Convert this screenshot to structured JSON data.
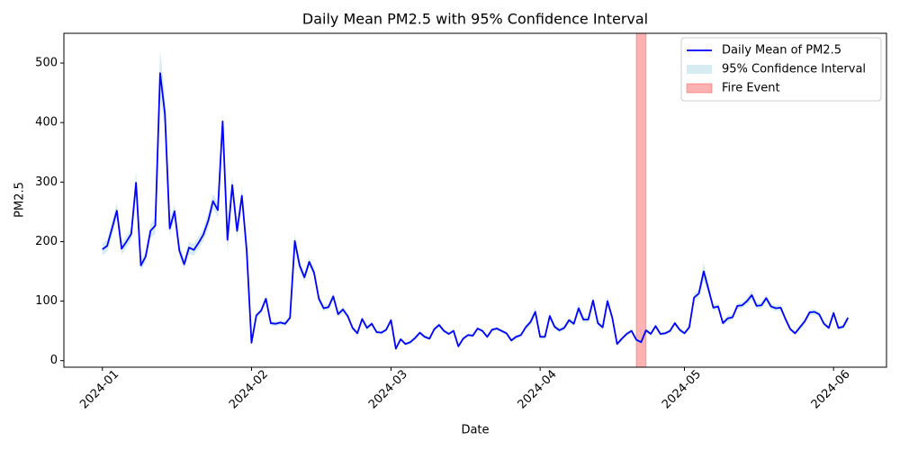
{
  "chart_data": {
    "type": "line",
    "title": "Daily Mean PM2.5 with 95% Confidence Interval",
    "xlabel": "Date",
    "ylabel": "PM2.5",
    "x": [
      "2024-01-01",
      "2024-01-02",
      "2024-01-03",
      "2024-01-04",
      "2024-01-05",
      "2024-01-06",
      "2024-01-07",
      "2024-01-08",
      "2024-01-09",
      "2024-01-10",
      "2024-01-11",
      "2024-01-12",
      "2024-01-13",
      "2024-01-14",
      "2024-01-15",
      "2024-01-16",
      "2024-01-17",
      "2024-01-18",
      "2024-01-19",
      "2024-01-20",
      "2024-01-21",
      "2024-01-22",
      "2024-01-23",
      "2024-01-24",
      "2024-01-25",
      "2024-01-26",
      "2024-01-27",
      "2024-01-28",
      "2024-01-29",
      "2024-01-30",
      "2024-01-31",
      "2024-02-01",
      "2024-02-02",
      "2024-02-03",
      "2024-02-04",
      "2024-02-05",
      "2024-02-06",
      "2024-02-07",
      "2024-02-08",
      "2024-02-09",
      "2024-02-10",
      "2024-02-11",
      "2024-02-12",
      "2024-02-13",
      "2024-02-14",
      "2024-02-15",
      "2024-02-16",
      "2024-02-17",
      "2024-02-18",
      "2024-02-19",
      "2024-02-20",
      "2024-02-21",
      "2024-02-22",
      "2024-02-23",
      "2024-02-24",
      "2024-02-25",
      "2024-02-26",
      "2024-02-27",
      "2024-02-28",
      "2024-02-29",
      "2024-03-01",
      "2024-03-02",
      "2024-03-03",
      "2024-03-04",
      "2024-03-05",
      "2024-03-06",
      "2024-03-07",
      "2024-03-08",
      "2024-03-09",
      "2024-03-10",
      "2024-03-11",
      "2024-03-12",
      "2024-03-13",
      "2024-03-14",
      "2024-03-15",
      "2024-03-16",
      "2024-03-17",
      "2024-03-18",
      "2024-03-19",
      "2024-03-20",
      "2024-03-21",
      "2024-03-22",
      "2024-03-23",
      "2024-03-24",
      "2024-03-25",
      "2024-03-26",
      "2024-03-27",
      "2024-03-28",
      "2024-03-29",
      "2024-03-30",
      "2024-03-31",
      "2024-04-01",
      "2024-04-02",
      "2024-04-03",
      "2024-04-04",
      "2024-04-05",
      "2024-04-06",
      "2024-04-07",
      "2024-04-08",
      "2024-04-09",
      "2024-04-10",
      "2024-04-11",
      "2024-04-12",
      "2024-04-13",
      "2024-04-14",
      "2024-04-15",
      "2024-04-16",
      "2024-04-17",
      "2024-04-18",
      "2024-04-19",
      "2024-04-20",
      "2024-04-21",
      "2024-04-22",
      "2024-04-23",
      "2024-04-24",
      "2024-04-25",
      "2024-04-26",
      "2024-04-27",
      "2024-04-28",
      "2024-04-29",
      "2024-04-30",
      "2024-05-01",
      "2024-05-02",
      "2024-05-03",
      "2024-05-04",
      "2024-05-05",
      "2024-05-06",
      "2024-05-07",
      "2024-05-08",
      "2024-05-09",
      "2024-05-10",
      "2024-05-11",
      "2024-05-12",
      "2024-05-13",
      "2024-05-14",
      "2024-05-15",
      "2024-05-16",
      "2024-05-17",
      "2024-05-18",
      "2024-05-19",
      "2024-05-20",
      "2024-05-21",
      "2024-05-22",
      "2024-05-23",
      "2024-05-24",
      "2024-05-25",
      "2024-05-26",
      "2024-05-27",
      "2024-05-28",
      "2024-05-29",
      "2024-05-30",
      "2024-05-31",
      "2024-06-01",
      "2024-06-02",
      "2024-06-03",
      "2024-06-04"
    ],
    "series": [
      {
        "name": "Daily Mean of PM2.5",
        "color": "#0000ff",
        "values": [
          187,
          193,
          222,
          252,
          188,
          200,
          213,
          299,
          160,
          175,
          218,
          227,
          483,
          415,
          222,
          251,
          185,
          162,
          190,
          186,
          198,
          212,
          235,
          268,
          253,
          402,
          203,
          295,
          218,
          277,
          185,
          30,
          76,
          84,
          104,
          63,
          62,
          64,
          62,
          72,
          201,
          160,
          140,
          166,
          148,
          104,
          88,
          90,
          108,
          78,
          86,
          75,
          55,
          46,
          70,
          55,
          62,
          48,
          47,
          52,
          68,
          20,
          36,
          28,
          31,
          38,
          47,
          40,
          37,
          53,
          60,
          50,
          45,
          50,
          24,
          37,
          43,
          42,
          54,
          50,
          40,
          52,
          54,
          50,
          46,
          34,
          40,
          43,
          56,
          65,
          82,
          40,
          40,
          75,
          57,
          51,
          55,
          68,
          62,
          88,
          69,
          69,
          101,
          63,
          56,
          100,
          72,
          28,
          37,
          45,
          50,
          35,
          31,
          51,
          45,
          58,
          45,
          46,
          50,
          63,
          52,
          46,
          56,
          106,
          113,
          150,
          120,
          89,
          91,
          63,
          71,
          73,
          92,
          93,
          100,
          110,
          92,
          93,
          105,
          91,
          88,
          89,
          70,
          53,
          46,
          56,
          66,
          81,
          82,
          78,
          62,
          55,
          80,
          55,
          57,
          72
        ]
      }
    ],
    "confidence_interval": {
      "name": "95% Confidence Interval",
      "color": "#add8e6",
      "margins": [
        10,
        10,
        12,
        13,
        10,
        10,
        11,
        20,
        8,
        9,
        11,
        14,
        40,
        25,
        12,
        12,
        10,
        8,
        10,
        10,
        10,
        11,
        12,
        12,
        12,
        15,
        22,
        15,
        12,
        14,
        10,
        4,
        4,
        5,
        6,
        4,
        4,
        4,
        4,
        4,
        12,
        8,
        7,
        8,
        7,
        6,
        5,
        5,
        6,
        5,
        5,
        4,
        4,
        3,
        4,
        4,
        4,
        3,
        3,
        3,
        4,
        3,
        3,
        3,
        3,
        3,
        3,
        3,
        3,
        3,
        4,
        3,
        3,
        3,
        3,
        3,
        3,
        3,
        3,
        3,
        3,
        3,
        3,
        3,
        3,
        3,
        3,
        3,
        4,
        5,
        8,
        4,
        4,
        6,
        4,
        4,
        4,
        5,
        4,
        8,
        5,
        5,
        8,
        5,
        4,
        8,
        6,
        3,
        3,
        3,
        3,
        3,
        3,
        4,
        3,
        4,
        3,
        3,
        3,
        4,
        3,
        3,
        4,
        6,
        6,
        15,
        8,
        5,
        5,
        4,
        5,
        5,
        5,
        5,
        6,
        8,
        5,
        5,
        6,
        5,
        5,
        5,
        4,
        3,
        3,
        4,
        4,
        5,
        5,
        4,
        4,
        4,
        6,
        4,
        4,
        6
      ]
    },
    "fire_event": {
      "name": "Fire Event",
      "color": "#ff0000",
      "start": "2024-04-21",
      "end": "2024-04-23"
    },
    "xlim": [
      "2023-12-24",
      "2024-06-12"
    ],
    "xticks": [
      "2024-01",
      "2024-02",
      "2024-03",
      "2024-04",
      "2024-05",
      "2024-06"
    ],
    "ylim": [
      -11,
      550
    ],
    "yticks": [
      0,
      100,
      200,
      300,
      400,
      500
    ],
    "grid": false,
    "legend": "upper right"
  }
}
